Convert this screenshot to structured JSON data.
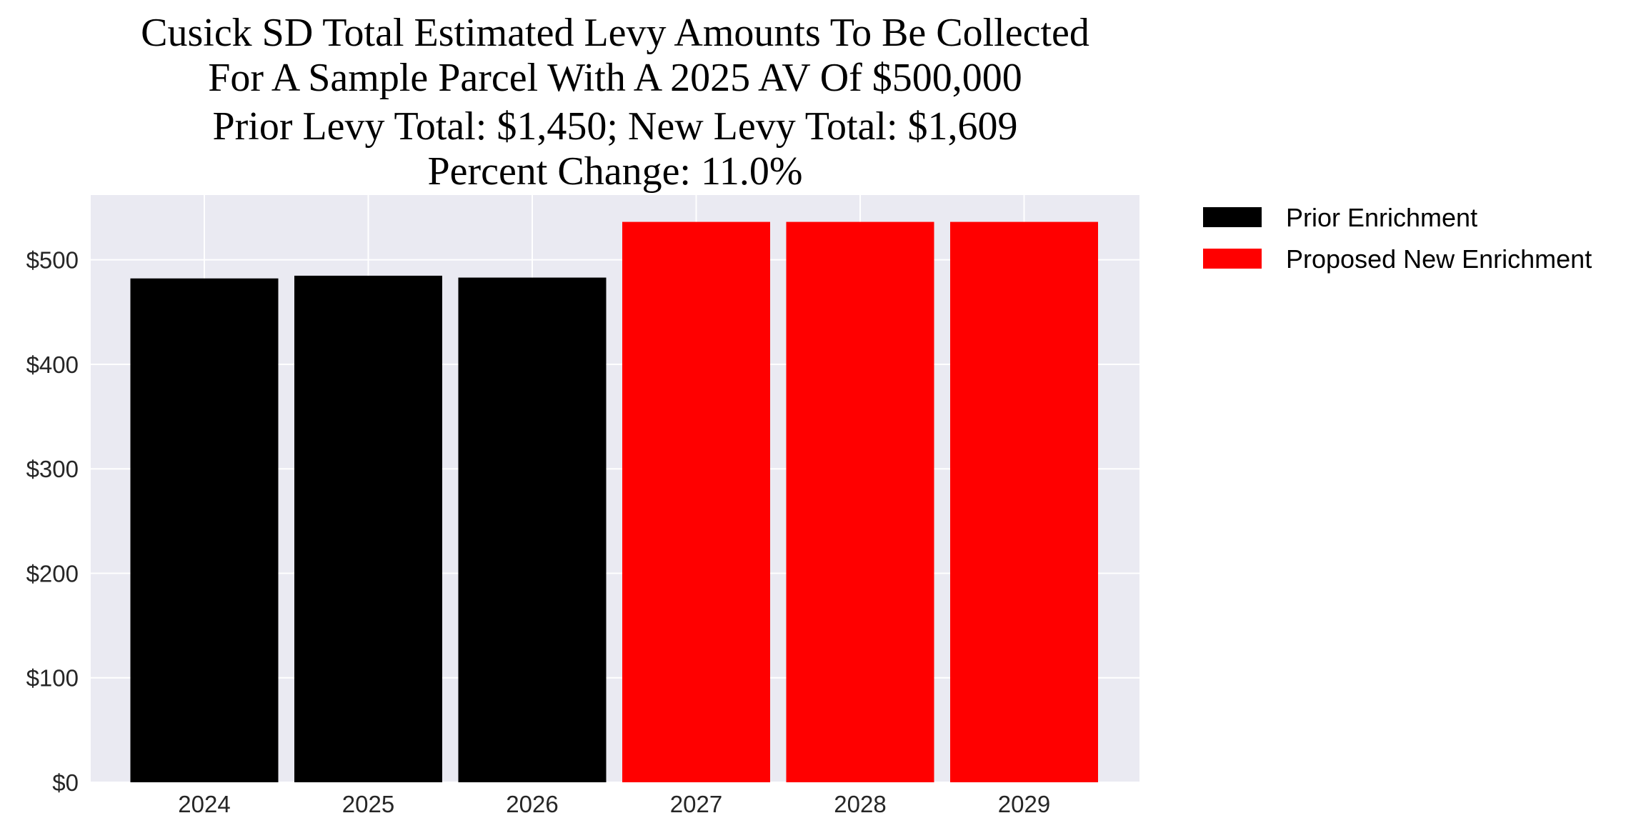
{
  "chart_data": {
    "type": "bar",
    "title_lines": [
      "Cusick SD Total Estimated Levy Amounts To Be Collected",
      "For A Sample Parcel With A 2025 AV Of $500,000",
      "Prior Levy Total:  $1,450; New Levy Total: $1,609",
      "Percent Change: 11.0%"
    ],
    "xlabel": "",
    "ylabel": "",
    "categories": [
      "2024",
      "2025",
      "2026",
      "2027",
      "2028",
      "2029"
    ],
    "values": [
      482.2,
      484.8,
      483.0,
      536.3,
      536.3,
      536.3
    ],
    "bar_series": [
      "Prior Enrichment",
      "Prior Enrichment",
      "Prior Enrichment",
      "Proposed New Enrichment",
      "Proposed New Enrichment",
      "Proposed New Enrichment"
    ],
    "series": [
      {
        "name": "Prior Enrichment",
        "color": "#000000"
      },
      {
        "name": "Proposed New Enrichment",
        "color": "#ff0000"
      }
    ],
    "ylim": [
      0,
      562
    ],
    "yticks": [
      0,
      100,
      200,
      300,
      400,
      500
    ],
    "ytick_labels": [
      "$0",
      "$100",
      "$200",
      "$300",
      "$400",
      "$500"
    ],
    "grid": true,
    "background": "#eaeaf2",
    "legend_position": "outside-top-right"
  }
}
